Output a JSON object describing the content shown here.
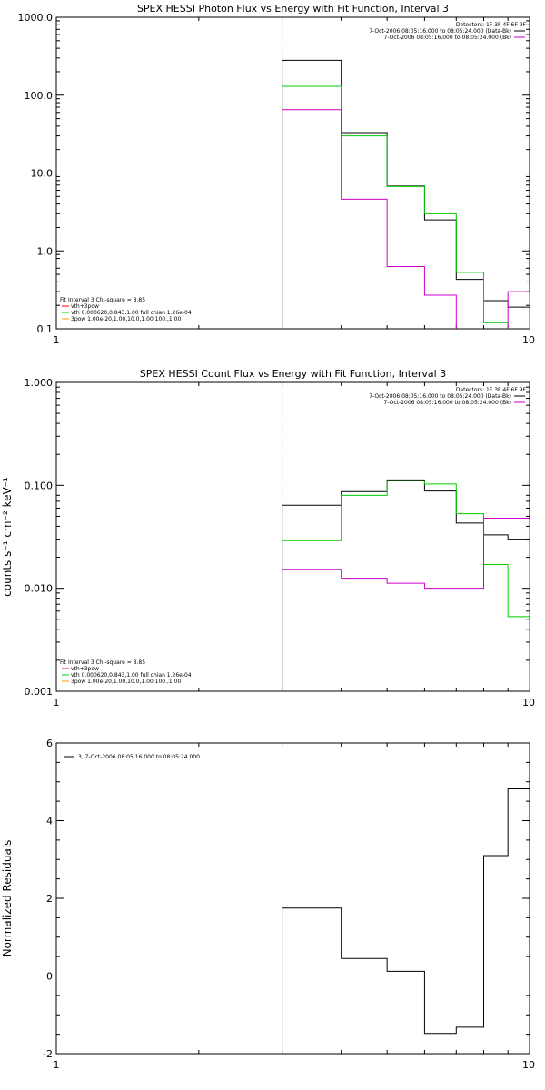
{
  "colors": {
    "black": "#000000",
    "green": "#00cc00",
    "magenta": "#cc00cc",
    "orange": "#ff9900",
    "red": "#ff0000"
  },
  "chart_data": [
    {
      "type": "line",
      "step": true,
      "title": "SPEX HESSI Photon Flux vs Energy with Fit Function, Interval 3",
      "xscale": "log",
      "yscale": "log",
      "xlim": [
        1,
        10
      ],
      "ylim": [
        0.1,
        1000
      ],
      "xticks": [
        1,
        10
      ],
      "xtick_labels": [
        "1",
        "10"
      ],
      "yticks": [
        0.1,
        1,
        10,
        100,
        1000
      ],
      "ytick_labels": [
        "0.1",
        "1.0",
        "10.0",
        "100.0",
        "1000.0"
      ],
      "vline": 3,
      "edges": [
        3,
        4,
        5,
        6,
        7,
        8,
        9,
        10
      ],
      "series": [
        {
          "color": "black",
          "values": [
            280,
            33,
            6.8,
            2.5,
            0.43,
            0.23,
            0.19
          ]
        },
        {
          "color": "green",
          "values": [
            130,
            30,
            6.7,
            3.0,
            0.53,
            0.12,
            0.09
          ]
        },
        {
          "color": "magenta",
          "values": [
            65,
            4.6,
            0.63,
            0.27,
            0.095,
            0.09,
            0.3
          ]
        }
      ],
      "legend_right": {
        "lines": [
          {
            "text": "Detectors: 1F 3F 4F 6F 9F",
            "swatch": null
          },
          {
            "text": "7-Oct-2006 08:05:16.000 to 08:05:24.000 (Data-Bk)",
            "swatch": "black"
          },
          {
            "text": "7-Oct-2006 08:05:16.000 to 08:05:24.000 (Bk)",
            "swatch": "magenta"
          }
        ]
      },
      "legend_left": {
        "lines": [
          {
            "text": "Fit Interval 3   Chi-square = 8.85",
            "swatch": null
          },
          {
            "text": "vth+3pow",
            "swatch": "red"
          },
          {
            "text": "vth 0.000620,0.843,1.00  full chian 1.26e-04",
            "swatch": "green"
          },
          {
            "text": "3pow 1.00e-20,1.00,10.0,1.00,100.,1.00",
            "swatch": "orange"
          }
        ]
      }
    },
    {
      "type": "line",
      "step": true,
      "title": "SPEX HESSI Count Flux vs Energy with Fit Function, Interval 3",
      "ylabel": "counts s⁻¹ cm⁻² keV⁻¹",
      "xscale": "log",
      "yscale": "log",
      "xlim": [
        1,
        10
      ],
      "ylim": [
        0.001,
        1
      ],
      "xticks": [
        1,
        10
      ],
      "xtick_labels": [
        "1",
        "10"
      ],
      "yticks": [
        0.001,
        0.01,
        0.1,
        1
      ],
      "ytick_labels": [
        "0.001",
        "0.010",
        "0.100",
        "1.000"
      ],
      "vline": 3,
      "edges": [
        3,
        4,
        5,
        6,
        7,
        8,
        9,
        10
      ],
      "series": [
        {
          "color": "black",
          "values": [
            0.064,
            0.087,
            0.113,
            0.088,
            0.043,
            0.033,
            0.03
          ]
        },
        {
          "color": "green",
          "values": [
            0.029,
            0.08,
            0.111,
            0.103,
            0.053,
            0.017,
            0.0053
          ]
        },
        {
          "color": "magenta",
          "values": [
            0.0153,
            0.0125,
            0.0112,
            0.01,
            0.01,
            0.048,
            0.048
          ]
        }
      ],
      "legend_right": {
        "lines": [
          {
            "text": "Detectors: 1F 3F 4F 6F 9F",
            "swatch": null
          },
          {
            "text": "7-Oct-2006 08:05:16.000 to 08:05:24.000 (Data-Bk)",
            "swatch": "black"
          },
          {
            "text": "7-Oct-2006 08:05:16.000 to 08:05:24.000 (Bk)",
            "swatch": "magenta"
          }
        ]
      },
      "legend_left": {
        "lines": [
          {
            "text": "Fit Interval 3   Chi-square = 8.85",
            "swatch": null
          },
          {
            "text": "vth+3pow",
            "swatch": "red"
          },
          {
            "text": "vth 0.000620,0.843,1.00  full chian 1.26e-04",
            "swatch": "green"
          },
          {
            "text": "3pow 1.00e-20,1.00,10.0,1.00,100.,1.00",
            "swatch": "orange"
          }
        ]
      }
    },
    {
      "type": "line",
      "step": true,
      "title": "",
      "ylabel": "Normalized Residuals",
      "xscale": "log",
      "yscale": "linear",
      "xlim": [
        1,
        10
      ],
      "ylim": [
        -2,
        6
      ],
      "xticks": [
        1,
        10
      ],
      "xtick_labels": [
        "1",
        "10"
      ],
      "yticks": [
        -2,
        0,
        2,
        4,
        6
      ],
      "ytick_labels": [
        "-2",
        "0",
        "2",
        "4",
        "6"
      ],
      "edges": [
        3,
        4,
        5,
        6,
        7,
        8,
        9,
        10
      ],
      "series": [
        {
          "color": "black",
          "values": [
            1.75,
            0.45,
            0.12,
            -1.48,
            -1.32,
            3.1,
            4.82
          ]
        }
      ],
      "legend_left_top": {
        "lines": [
          {
            "text": "3,  7-Oct-2006 08:05:16.000 to 08:05:24.000",
            "swatch": "black"
          }
        ]
      }
    }
  ]
}
